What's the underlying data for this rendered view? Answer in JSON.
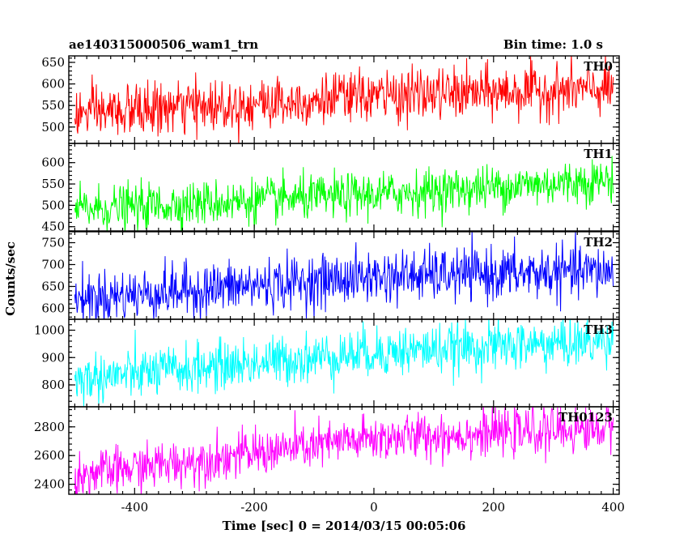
{
  "header": {
    "obs_id": "ae140315000506_wam1_trn",
    "bin_time": "Bin time: 1.0 s"
  },
  "chart_data": {
    "type": "line",
    "xlabel": "Time [sec] 0 = 2014/03/15 00:05:06",
    "ylabel": "Counts/sec",
    "xlim": [
      -510,
      410
    ],
    "x_ticks": [
      -400,
      -200,
      0,
      200,
      400
    ],
    "x_range": [
      -500,
      400
    ],
    "bin_time": 1.0,
    "panels": [
      {
        "name": "TH0",
        "color": "#ff0000",
        "ylim": [
          462,
          665
        ],
        "y_ticks": [
          500,
          550,
          600,
          650
        ],
        "trend": [
          {
            "x": -500,
            "y": 530
          },
          {
            "x": 0,
            "y": 572
          },
          {
            "x": 400,
            "y": 588
          }
        ],
        "scatter": 30
      },
      {
        "name": "TH1",
        "color": "#00ff00",
        "ylim": [
          440,
          645
        ],
        "y_ticks": [
          450,
          500,
          550,
          600
        ],
        "trend": [
          {
            "x": -500,
            "y": 490
          },
          {
            "x": 0,
            "y": 525
          },
          {
            "x": 400,
            "y": 560
          }
        ],
        "scatter": 26
      },
      {
        "name": "TH2",
        "color": "#0000ff",
        "ylim": [
          575,
          775
        ],
        "y_ticks": [
          600,
          650,
          700,
          750
        ],
        "trend": [
          {
            "x": -500,
            "y": 622
          },
          {
            "x": 0,
            "y": 672
          },
          {
            "x": 400,
            "y": 685
          }
        ],
        "scatter": 30
      },
      {
        "name": "TH3",
        "color": "#00ffff",
        "ylim": [
          720,
          1040
        ],
        "y_ticks": [
          800,
          900,
          1000
        ],
        "trend": [
          {
            "x": -500,
            "y": 820
          },
          {
            "x": 0,
            "y": 920
          },
          {
            "x": 400,
            "y": 960
          }
        ],
        "scatter": 45
      },
      {
        "name": "TH0123",
        "color": "#ff00ff",
        "ylim": [
          2330,
          2940
        ],
        "y_ticks": [
          2400,
          2600,
          2800
        ],
        "trend": [
          {
            "x": -500,
            "y": 2460
          },
          {
            "x": 0,
            "y": 2720
          },
          {
            "x": 400,
            "y": 2790
          }
        ],
        "scatter": 80
      }
    ]
  }
}
